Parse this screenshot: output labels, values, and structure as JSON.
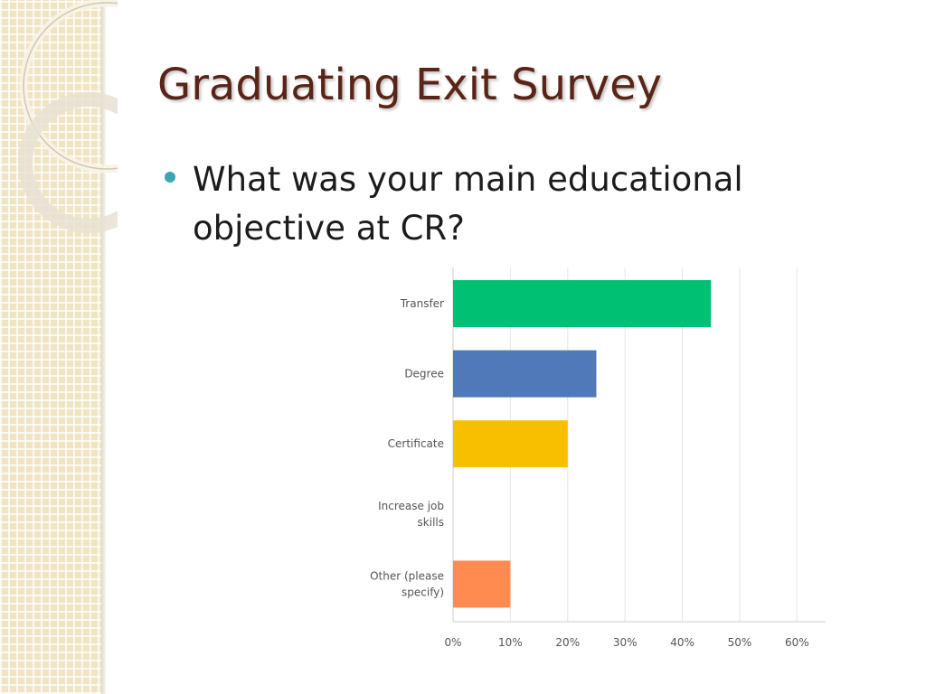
{
  "slide": {
    "title": "Graduating Exit Survey",
    "bullet": "What was your main educational objective at CR?"
  },
  "chart_data": {
    "type": "bar",
    "orientation": "horizontal",
    "categories": [
      "Transfer",
      "Degree",
      "Certificate",
      "Increase job skills",
      "Other (please specify)"
    ],
    "category_label_lines": [
      [
        "Transfer"
      ],
      [
        "Degree"
      ],
      [
        "Certificate"
      ],
      [
        "Increase job",
        "skills"
      ],
      [
        "Other (please",
        "specify)"
      ]
    ],
    "values": [
      45,
      25,
      20,
      0,
      10
    ],
    "colors": [
      "#00c073",
      "#4f79b9",
      "#f8bf00",
      "#9a5fa8",
      "#ff8b50"
    ],
    "x_ticks": [
      "0%",
      "10%",
      "20%",
      "30%",
      "40%",
      "50%",
      "60%"
    ],
    "xlim": [
      0,
      65
    ],
    "unit": "%",
    "grid": true,
    "title": "",
    "xlabel": "",
    "ylabel": ""
  },
  "colors": {
    "title": "#5a2516",
    "bullet": "#3aa6b4",
    "sidebar": "#f1e4c2",
    "grid": "#e6e6e6"
  }
}
